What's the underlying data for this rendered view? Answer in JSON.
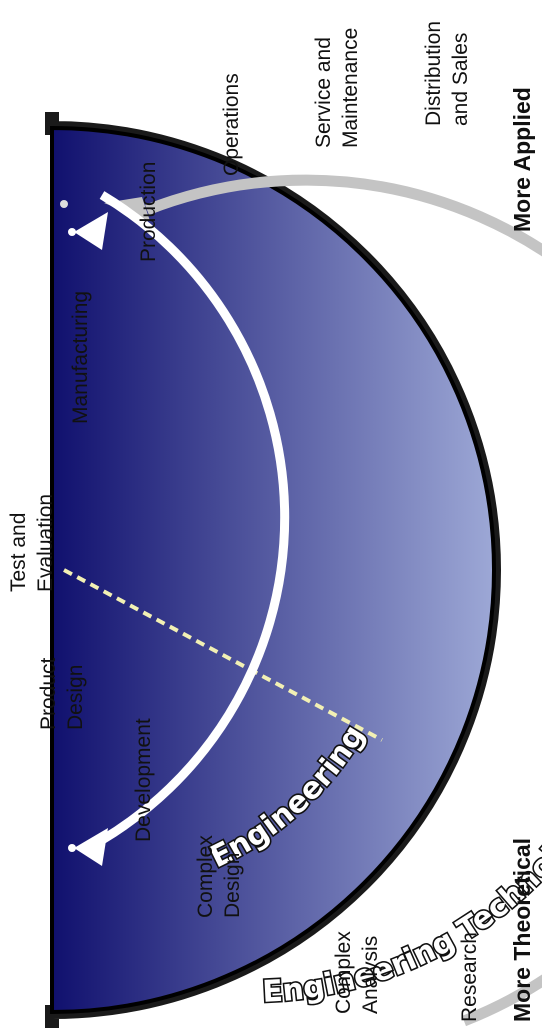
{
  "stages": [
    {
      "id": "research",
      "lines": [
        "Research"
      ]
    },
    {
      "id": "complex-analysis",
      "lines": [
        "Complex",
        "Analysis"
      ]
    },
    {
      "id": "complex-design",
      "lines": [
        "Complex",
        "Design"
      ]
    },
    {
      "id": "development",
      "lines": [
        "Development"
      ]
    },
    {
      "id": "product-design",
      "lines": [
        "Product",
        "Design"
      ]
    },
    {
      "id": "test-and-evaluation",
      "lines": [
        "Test and",
        "Evaluation"
      ]
    },
    {
      "id": "manufacturing",
      "lines": [
        "Manufacturing"
      ]
    },
    {
      "id": "production",
      "lines": [
        "Production"
      ]
    },
    {
      "id": "operations",
      "lines": [
        "Operations"
      ]
    },
    {
      "id": "service-and-maintenance",
      "lines": [
        "Service and",
        "Maintenance"
      ]
    },
    {
      "id": "distribution-and-sales",
      "lines": [
        "Distribution",
        "and Sales"
      ]
    }
  ],
  "axis": {
    "left_label": "More Theoretical",
    "right_label": "More Applied"
  },
  "arcs": {
    "engineering_label": "Engineering",
    "engineering_technology_label": "Engineering Technology"
  },
  "colors": {
    "dome_top": "#9da8d6",
    "dome_bottom": "#10106e",
    "outline": "#000000",
    "engineering_arrow": "#ffffff",
    "technology_arrow": "#c4c4c4",
    "divider": "#f2f0b4"
  }
}
